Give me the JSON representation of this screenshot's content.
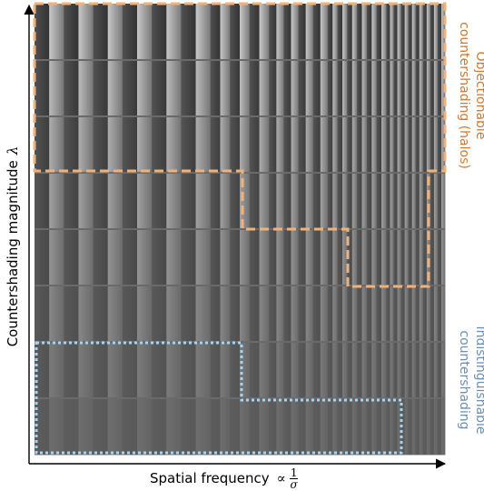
{
  "axes": {
    "x_label": "Spatial frequency",
    "x_symbol": "∝",
    "x_fraction_numerator": "1",
    "x_fraction_denominator": "σ",
    "y_label": "Countershading magnitude",
    "y_symbol": "λ"
  },
  "annotations": {
    "objectionable": {
      "line1": "Objectionable",
      "line2": "countershading (halos)"
    },
    "indistinguishable": {
      "line1": "Indistinguishable",
      "line2": "countershading"
    }
  },
  "colors": {
    "objectionable": "#f0b27a",
    "indistinguishable": "#a9d4f0",
    "objectionable_text": "#d07830",
    "indistinguishable_text": "#6a8fb3"
  },
  "grid": {
    "row_count": 8,
    "column_pair_groups": [
      2,
      2,
      2,
      3,
      4,
      6,
      8
    ]
  }
}
